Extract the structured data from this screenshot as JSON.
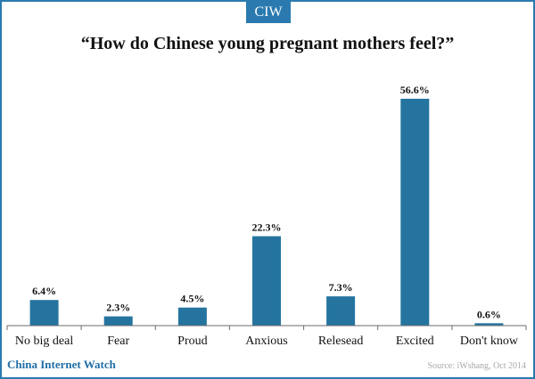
{
  "header": {
    "badge": "CIW"
  },
  "chart_data": {
    "type": "bar",
    "title": "“How do Chinese young pregnant mothers feel?”",
    "categories": [
      "No big deal",
      "Fear",
      "Proud",
      "Anxious",
      "Relesead",
      "Excited",
      "Don't know"
    ],
    "values": [
      6.4,
      2.3,
      4.5,
      22.3,
      7.3,
      56.6,
      0.6
    ],
    "value_labels": [
      "6.4%",
      "2.3%",
      "4.5%",
      "22.3%",
      "7.3%",
      "56.6%",
      "0.6%"
    ],
    "bar_color": "#2574a0",
    "xlabel": "",
    "ylabel": "",
    "grid": false,
    "legend": "none"
  },
  "footer": {
    "brand": "China Internet Watch",
    "source": "Source: iWshang, Oct 2014"
  }
}
